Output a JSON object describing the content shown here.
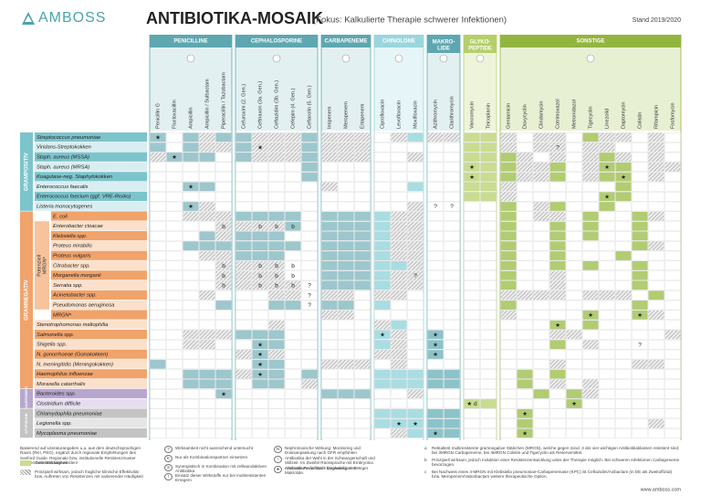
{
  "header": {
    "logo": "AMBOSS",
    "title": "ANTIBIOTIKA-MOSAIK",
    "subtitle": "(Fokus: Kalkulierte Therapie schwerer Infektionen)",
    "stand": "Stand 2019/2020"
  },
  "drug_groups": [
    {
      "name": [
        "PENICILLINE"
      ],
      "drugs": [
        "Penicillin G",
        "Flucloxacillin",
        "Ampicillin",
        "Ampicillin / Sulbactam",
        "Piperacillin / Tazobactam"
      ]
    },
    {
      "name": [
        "CEPHALOSPORINE"
      ],
      "drugs": [
        "Cefuroxim (2. Gen.)",
        "Ceftriaxon (3a. Gen.)",
        "Ceftazidim (3b. Gen.)",
        "Cefepim (4. Gen.)",
        "Ceftarolin (5. Gen.)"
      ]
    },
    {
      "name": [
        "CARBAPENEME"
      ],
      "drugs": [
        "Imipenem",
        "Meropenem",
        "Ertapenem"
      ]
    },
    {
      "name": [
        "CHINOLONE"
      ],
      "drugs": [
        "Ciprofloxacin",
        "Levofloxacin",
        "Moxifloxacin"
      ]
    },
    {
      "name": [
        "MAKRO-",
        "LIDE"
      ],
      "drugs": [
        "Azithromycin",
        "Clarithromycin"
      ]
    },
    {
      "name": [
        "GLYKO-",
        "PEPTIDE"
      ],
      "drugs": [
        "Vancomycin",
        "Teicoplanin"
      ]
    },
    {
      "name": [
        "SONSTIGE"
      ],
      "drugs": [
        "Gentamicin",
        "Doxycyclin",
        "Clindamycin",
        "Cotrimoxazol",
        "Metronidazol",
        "Tigecyclin",
        "Linezolid",
        "Daptomycin",
        "Colistin",
        "Rifampicin",
        "Fosfomycin"
      ]
    }
  ],
  "organism_groups": [
    {
      "name": "GRAMPOSITIV",
      "rows": [
        {
          "label": "Streptococcus pneumoniae",
          "symbols": [
            {
              "drug": "Penicillin G",
              "text": "★"
            }
          ]
        },
        {
          "label": "Viridans-Streptokokken",
          "symbols": [
            {
              "drug": "Ceftriaxon (3a. Gen.)",
              "text": "★"
            },
            {
              "drug": "Cotrimoxazol",
              "text": "?"
            }
          ]
        },
        {
          "label": "Staph. aureus (MSSA)",
          "symbols": [
            {
              "drug": "Flucloxacillin",
              "text": "★"
            }
          ]
        },
        {
          "label": "Staph. aureus (MRSA)",
          "symbols": [
            {
              "drug": "Vancomycin",
              "text": "★"
            },
            {
              "drug": "Linezolid",
              "text": "★"
            }
          ]
        },
        {
          "label": "Koagulase-neg. Staphylokokken",
          "symbols": [
            {
              "drug": "Vancomycin",
              "text": "★"
            },
            {
              "drug": "Daptomycin",
              "text": "★"
            }
          ]
        },
        {
          "label": "Enterococcus faecalis",
          "symbols": [
            {
              "drug": "Ampicillin",
              "text": "★"
            }
          ]
        },
        {
          "label": "Enterococcus faecium (ggf. VRE-Risiko)",
          "symbols": [
            {
              "drug": "Linezolid",
              "text": "★"
            }
          ]
        },
        {
          "label": "Listeria monocytogenes",
          "symbols": [
            {
              "drug": "Ampicillin",
              "text": "★"
            },
            {
              "drug": "Azithromycin",
              "text": "?"
            },
            {
              "drug": "Clarithromycin",
              "text": "?"
            }
          ]
        }
      ]
    },
    {
      "name": "GRAMNEGATIV",
      "rows": [
        {
          "label": "E. coli",
          "symbols": []
        },
        {
          "label": "Enterobacter cloacae",
          "symbols": [
            {
              "drug": "Piperacillin / Tazobactam",
              "text": "b"
            },
            {
              "drug": "Ceftriaxon (3a. Gen.)",
              "text": "b"
            },
            {
              "drug": "Ceftazidim (3b. Gen.)",
              "text": "b"
            },
            {
              "drug": "Cefepim (4. Gen.)",
              "text": "b"
            }
          ]
        },
        {
          "label": "Klebsiella spp.",
          "symbols": []
        },
        {
          "label": "Proteus mirabilis",
          "symbols": []
        },
        {
          "label": "Proteus vulgaris",
          "symbols": []
        },
        {
          "label": "Citrobacter spp.",
          "symbols": [
            {
              "drug": "Piperacillin / Tazobactam",
              "text": "b"
            },
            {
              "drug": "Ceftriaxon (3a. Gen.)",
              "text": "b"
            },
            {
              "drug": "Ceftazidim (3b. Gen.)",
              "text": "b"
            },
            {
              "drug": "Cefepim (4. Gen.)",
              "text": "b"
            }
          ]
        },
        {
          "label": "Morganella morganii",
          "symbols": [
            {
              "drug": "Piperacillin / Tazobactam",
              "text": "b"
            },
            {
              "drug": "Ceftriaxon (3a. Gen.)",
              "text": "b"
            },
            {
              "drug": "Ceftazidim (3b. Gen.)",
              "text": "b"
            },
            {
              "drug": "Cefepim (4. Gen.)",
              "text": "b"
            },
            {
              "drug": "Moxifloxacin",
              "text": "?"
            }
          ]
        },
        {
          "label": "Serratia spp.",
          "symbols": [
            {
              "drug": "Piperacillin / Tazobactam",
              "text": "b"
            },
            {
              "drug": "Ceftriaxon (3a. Gen.)",
              "text": "b"
            },
            {
              "drug": "Ceftazidim (3b. Gen.)",
              "text": "b"
            },
            {
              "drug": "Cefepim (4. Gen.)",
              "text": "b"
            },
            {
              "drug": "Ceftarolin (5. Gen.)",
              "text": "?"
            }
          ]
        },
        {
          "label": "Acinetobacter spp.",
          "symbols": [
            {
              "drug": "Ceftarolin (5. Gen.)",
              "text": "?"
            }
          ]
        },
        {
          "label": "Pseudomonas aeruginosa",
          "symbols": [
            {
              "drug": "Ceftarolin (5. Gen.)",
              "text": "?"
            }
          ]
        },
        {
          "label": "MRGNᵃ",
          "symbols": [
            {
              "drug": "Tigecyclin",
              "text": "★"
            },
            {
              "drug": "Colistin",
              "text": "★"
            }
          ]
        },
        {
          "label": "Stenotrophomonas maltophilia",
          "symbols": [
            {
              "drug": "Cotrimoxazol",
              "text": "★"
            }
          ]
        },
        {
          "label": "Salmonella spp.",
          "symbols": [
            {
              "drug": "Ciprofloxacin",
              "text": "★"
            },
            {
              "drug": "Azithromycin",
              "text": "★"
            }
          ]
        },
        {
          "label": "Shigella spp.",
          "symbols": [
            {
              "drug": "Ceftriaxon (3a. Gen.)",
              "text": "★"
            },
            {
              "drug": "Azithromycin",
              "text": "★"
            },
            {
              "drug": "Colistin",
              "text": "?"
            }
          ]
        },
        {
          "label": "N. gonorrhoeae (Gonokokken)",
          "symbols": [
            {
              "drug": "Ceftriaxon (3a. Gen.)",
              "text": "★"
            },
            {
              "drug": "Azithromycin",
              "text": "★"
            }
          ]
        },
        {
          "label": "N. meningitidis (Meningokokken)",
          "symbols": [
            {
              "drug": "Ceftriaxon (3a. Gen.)",
              "text": "★"
            }
          ]
        },
        {
          "label": "Haemophilus influenzae",
          "symbols": [
            {
              "drug": "Ceftriaxon (3a. Gen.)",
              "text": "★"
            }
          ]
        },
        {
          "label": "Moraxella catarrhalis",
          "symbols": []
        }
      ]
    },
    {
      "name": "ANAEROBIER",
      "rows": [
        {
          "label": "Bacteroides spp.",
          "symbols": [
            {
              "drug": "Piperacillin / Tazobactam",
              "text": "★"
            }
          ]
        },
        {
          "label": "Clostridium difficile",
          "symbols": [
            {
              "drug": "Vancomycin",
              "text": "★ d"
            },
            {
              "drug": "Metronidazol",
              "text": "★"
            }
          ]
        }
      ]
    },
    {
      "name": "ATYPISCHE",
      "rows": [
        {
          "label": "Chlamydophila pneumoniae",
          "symbols": [
            {
              "drug": "Doxycyclin",
              "text": "★"
            }
          ]
        },
        {
          "label": "Legionella spp.",
          "symbols": [
            {
              "drug": "Levofloxacin",
              "text": "★"
            },
            {
              "drug": "Moxifloxacin",
              "text": "★"
            }
          ]
        },
        {
          "label": "Mycoplasma pneumoniae",
          "symbols": [
            {
              "drug": "Azithromycin",
              "text": "★"
            },
            {
              "drug": "Doxycyclin",
              "text": "★"
            }
          ]
        }
      ]
    }
  ],
  "potential_mrgn": [
    "Potenziell",
    "MRGNᵃ"
  ],
  "note": "Basierend auf Literaturangaben u.a. aus dem deutschsprachigen Raum (RKI, PEG), ergänzt durch regionale Empfehlungen des Sanford Guide. Regionale bzw. institutionelle Resistenzmuster müssen berücksichtigt werden!",
  "legend": [
    {
      "symbol": "",
      "text": "Gute Wirksamkeit"
    },
    {
      "symbol": "",
      "text": "Prinzipiell wirksam, jedoch fragliche klinische Effektivität bzw. Auftreten von Resistenzen mit variierender Häufigkeit"
    },
    {
      "symbol": "?",
      "text": "Wirksamkeit nicht ausreichend untersucht"
    },
    {
      "symbol": "K",
      "text": "Nur als Kombinationspartner einsetzen"
    },
    {
      "symbol": "S",
      "text": "Synergistisch in Kombination mit zellwandaktiven Antibiotika"
    },
    {
      "symbol": "!",
      "text": "Einsatz dieser Wirkstoffe nur bei multiresistenten Erregern"
    },
    {
      "symbol": "N",
      "text": "Nephrotoxische Wirkung: Monitoring und Dosisanpassung nach GFR empfohlen"
    },
    {
      "symbol": "♀",
      "text": "Antibiotika der Wahl in der Schwangerschaft und Stillzeit. Im Zweifel Rücksprache mit Embryotox. Alternativ Penicilline + Cephalosporine + Makrolide."
    },
    {
      "symbol": "★",
      "text": "Antibiotikum der Wahl bei jeweiligem Erreger"
    }
  ],
  "footnotes": [
    {
      "mark": "a",
      "text": "Rektaltest multiresistente gramnegative Stäbchen (MRGN), welche gegen mind. 3 der vier wichtigen Antibiotikaklassen resistent sind; bei 3MRGN Carbapeneme, bei 4MRGN Colistin und Tigecyclin als Reservemittel."
    },
    {
      "mark": "b",
      "text": "Prinzipiell wirksam, jedoch Induktion einer Resistenzentwicklung unter der Therapie möglich. Bei schweren Infektionen Carbapeneme bevorzugen."
    },
    {
      "mark": "c",
      "text": "Bei Nachweis eines 4-MRGN mit Klebsiella pneumoniae-Carbapenemase (KPC) ist Ceftazidim/Avibactam (in DE als Zweitoffizial) bzw. Meropenem/Vaborbactam weitere therapeutische Option."
    }
  ],
  "website": "www.amboss.com"
}
